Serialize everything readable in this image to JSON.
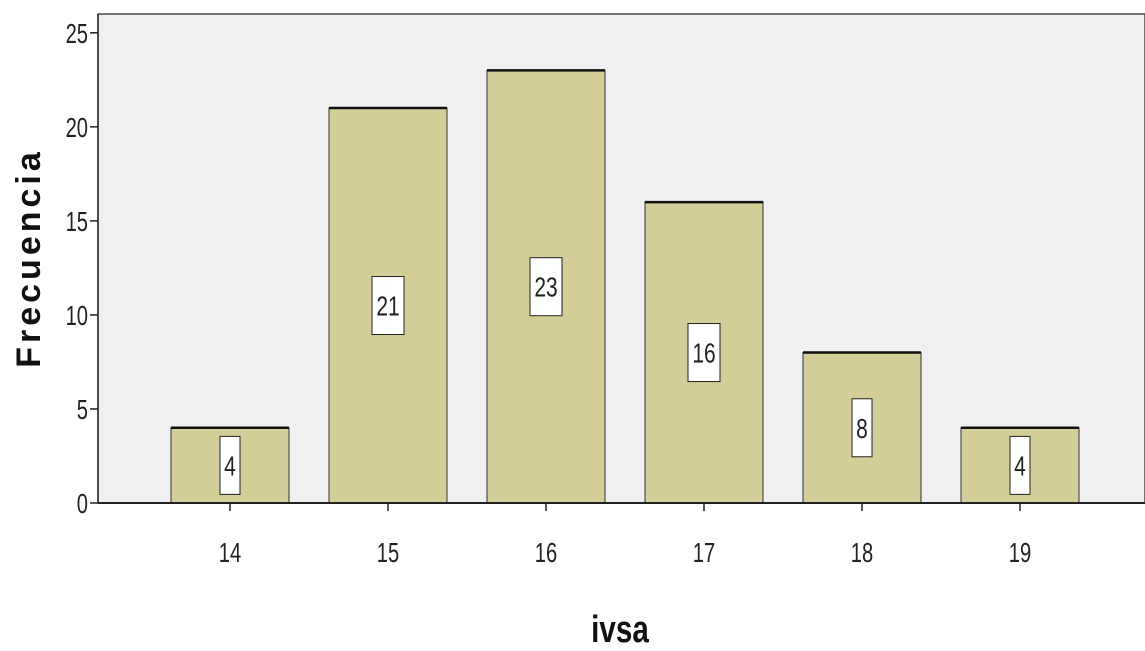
{
  "chart_data": {
    "type": "bar",
    "categories": [
      "14",
      "15",
      "16",
      "17",
      "18",
      "19"
    ],
    "values": [
      4,
      21,
      23,
      16,
      8,
      4
    ],
    "data_labels": [
      "4",
      "21",
      "23",
      "16",
      "8",
      "4"
    ],
    "xlabel": "ivsa",
    "ylabel": "Frecuencia",
    "ylim": [
      0,
      26
    ],
    "yticks": [
      "0",
      "5",
      "10",
      "15",
      "20",
      "25"
    ],
    "ytick_values": [
      0,
      5,
      10,
      15,
      20,
      25
    ],
    "grid": false,
    "legend": "none",
    "colors": {
      "plot_background": "#f0f0f0",
      "bar_fill": "#d3ce97",
      "bar_stroke": "#333333",
      "label_box": "#ffffff"
    }
  }
}
